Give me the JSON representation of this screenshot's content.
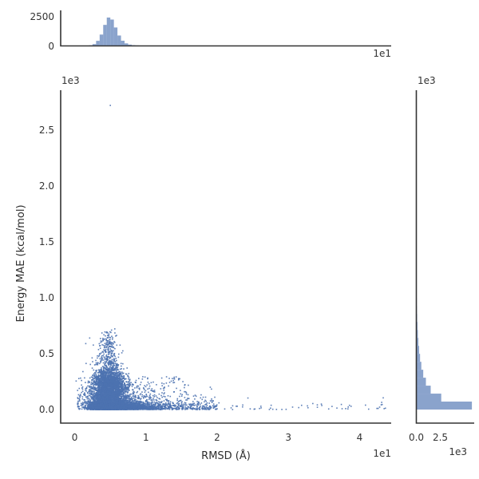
{
  "figure": {
    "background": "#ffffff",
    "spine_color": "#333333",
    "text_color": "#333333",
    "accent_color": "#4C72B0"
  },
  "chart_data": {
    "type": "scatter",
    "subtype": "jointplot_with_marginal_histograms",
    "title": "",
    "xlabel": "RMSD (Å)",
    "ylabel": "Energy MAE (kcal/mol)",
    "x_axis": {
      "ticks": [
        0,
        10,
        20,
        30,
        40
      ],
      "tick_labels": [
        "0",
        "1",
        "2",
        "3",
        "4"
      ],
      "offset_label": "1e1",
      "range": [
        -2.0,
        44.5
      ],
      "grid": false
    },
    "y_axis": {
      "ticks": [
        0,
        500,
        1000,
        1500,
        2000,
        2500
      ],
      "tick_labels": [
        "0.0",
        "0.5",
        "1.0",
        "1.5",
        "2.0",
        "2.5"
      ],
      "offset_label": "1e3",
      "range": [
        -121,
        2857
      ],
      "grid": false
    },
    "top_marginal": {
      "type": "histogram",
      "orientation": "vertical",
      "count_ticks": [
        0,
        2500
      ],
      "count_tick_labels": [
        "0",
        "2500"
      ],
      "x_offset_label": "1e1",
      "count_axis_max": 3000,
      "bin_start": 0,
      "bin_width": 0.5,
      "counts": [
        0,
        2,
        4,
        14,
        50,
        150,
        430,
        960,
        1780,
        2400,
        2230,
        1560,
        880,
        440,
        215,
        110,
        62,
        40,
        28,
        22,
        18,
        15,
        12,
        10,
        9,
        8,
        7,
        6,
        6,
        5,
        5,
        4,
        4,
        3,
        3,
        3,
        2,
        2,
        2,
        2,
        1,
        1,
        1,
        1,
        1,
        1,
        1,
        0,
        1,
        0,
        1,
        0,
        1,
        0,
        1,
        0,
        1,
        0,
        0,
        1,
        0,
        0,
        1,
        0,
        0,
        0,
        1,
        0,
        0,
        0,
        1,
        0,
        0,
        0,
        0,
        1,
        0,
        0,
        0,
        0,
        1,
        0,
        0,
        0,
        0,
        1,
        0,
        0,
        1,
        0
      ]
    },
    "right_marginal": {
      "type": "histogram",
      "orientation": "horizontal",
      "count_ticks": [
        0,
        2500
      ],
      "count_tick_labels": [
        "0.0",
        "2.5"
      ],
      "count_offset_label": "1e3",
      "value_offset_label": "1e3",
      "count_axis_max": 6100,
      "bin_start": 0,
      "bin_width": 71.25,
      "counts": [
        5800,
        2600,
        1500,
        1000,
        720,
        520,
        390,
        290,
        215,
        160,
        120,
        88,
        64,
        48,
        36,
        26,
        19,
        14,
        10,
        7,
        5,
        4,
        3,
        2,
        2,
        1,
        1,
        1,
        1,
        0,
        0,
        0,
        0,
        0,
        0,
        0,
        0,
        0,
        1,
        0
      ]
    },
    "scatter": {
      "marker_color": "#4C72B0",
      "marker_size_px": 1.6,
      "n_points_approx": 8600,
      "seed": 42,
      "clusters": [
        {
          "name": "base-strip",
          "n": 5000,
          "x": {
            "dist": "lognormal",
            "mu": 1.63,
            "sigma": 0.4
          },
          "y": {
            "dist": "exp",
            "scale": 36
          }
        },
        {
          "name": "mid-blob",
          "n": 2500,
          "x": {
            "dist": "normal",
            "mean": 4.9,
            "sd": 1.15
          },
          "y": {
            "dist": "normal",
            "mean": 205,
            "sd": 85
          }
        },
        {
          "name": "upper-plume",
          "n": 230,
          "x": {
            "dist": "normal",
            "mean": 4.7,
            "sd": 0.75
          },
          "y": {
            "dist": "normal",
            "mean": 480,
            "sd": 85
          }
        },
        {
          "name": "spike-top",
          "n": 40,
          "x": {
            "dist": "normal",
            "mean": 4.75,
            "sd": 0.45
          },
          "y": {
            "dist": "uniform",
            "min": 560,
            "max": 700
          }
        },
        {
          "name": "left-sparse",
          "n": 130,
          "x": {
            "dist": "uniform",
            "min": 0.4,
            "max": 2.6
          },
          "y": {
            "dist": "exp",
            "scale": 110
          }
        },
        {
          "name": "right-tail",
          "n": 380,
          "x": {
            "dist": "uniform",
            "min": 8,
            "max": 20
          },
          "y": {
            "dist": "exp",
            "scale": 32
          }
        },
        {
          "name": "far-tail",
          "n": 55,
          "x": {
            "dist": "uniform",
            "min": 18,
            "max": 44
          },
          "y": {
            "dist": "exp",
            "scale": 28
          }
        },
        {
          "name": "mid-sparse",
          "n": 110,
          "x": {
            "dist": "uniform",
            "min": 6.5,
            "max": 16
          },
          "y": {
            "dist": "uniform",
            "min": 100,
            "max": 300
          }
        }
      ],
      "outliers": [
        [
          5.0,
          2721
        ],
        [
          0.2,
          255
        ],
        [
          2.1,
          640
        ]
      ]
    }
  }
}
